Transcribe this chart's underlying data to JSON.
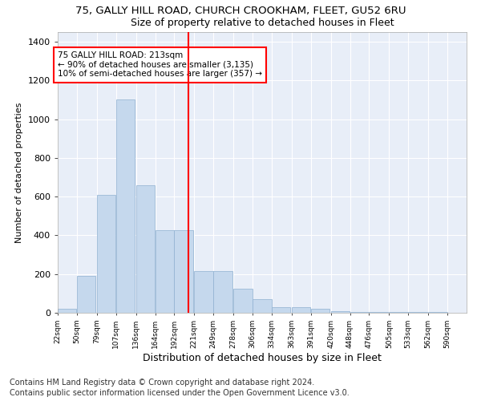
{
  "title1": "75, GALLY HILL ROAD, CHURCH CROOKHAM, FLEET, GU52 6RU",
  "title2": "Size of property relative to detached houses in Fleet",
  "xlabel": "Distribution of detached houses by size in Fleet",
  "ylabel": "Number of detached properties",
  "footnote1": "Contains HM Land Registry data © Crown copyright and database right 2024.",
  "footnote2": "Contains public sector information licensed under the Open Government Licence v3.0.",
  "bar_values": [
    20,
    190,
    610,
    1100,
    660,
    425,
    425,
    215,
    215,
    125,
    70,
    30,
    30,
    20,
    10,
    5,
    5,
    5,
    5,
    5
  ],
  "bin_edges": [
    22,
    50,
    79,
    107,
    136,
    164,
    192,
    221,
    249,
    278,
    306,
    334,
    363,
    391,
    420,
    448,
    476,
    505,
    533,
    562,
    590
  ],
  "bin_labels": [
    "22sqm",
    "50sqm",
    "79sqm",
    "107sqm",
    "136sqm",
    "164sqm",
    "192sqm",
    "221sqm",
    "249sqm",
    "278sqm",
    "306sqm",
    "334sqm",
    "363sqm",
    "391sqm",
    "420sqm",
    "448sqm",
    "476sqm",
    "505sqm",
    "533sqm",
    "562sqm",
    "590sqm"
  ],
  "bar_color": "#c5d8ed",
  "bar_edge_color": "#8fb0d0",
  "vline_position": 213,
  "vline_color": "red",
  "annotation_text": "75 GALLY HILL ROAD: 213sqm\n← 90% of detached houses are smaller (3,135)\n10% of semi-detached houses are larger (357) →",
  "annotation_box_color": "white",
  "annotation_box_edge_color": "red",
  "ylim": [
    0,
    1450
  ],
  "yticks": [
    0,
    200,
    400,
    600,
    800,
    1000,
    1200,
    1400
  ],
  "background_color": "#e8eef8",
  "grid_color": "white",
  "title1_fontsize": 9.5,
  "title2_fontsize": 9,
  "footnote_fontsize": 7
}
